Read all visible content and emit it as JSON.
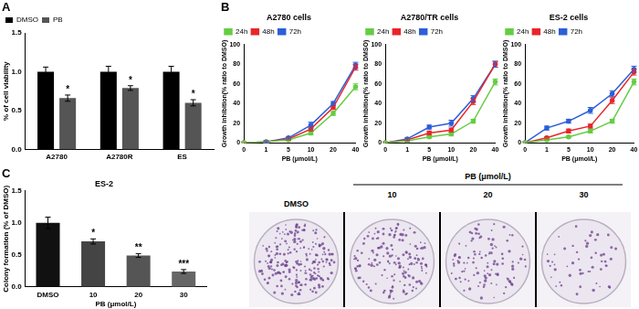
{
  "chart_data": [
    {
      "panel": "A",
      "type": "bar",
      "y_label": "% of cell viability",
      "categories": [
        "A2780",
        "A2780R",
        "ES"
      ],
      "series": [
        {
          "name": "DMSO",
          "color": "#000000",
          "values": [
            1.0,
            1.0,
            1.0
          ],
          "errors": [
            0.06,
            0.07,
            0.07
          ]
        },
        {
          "name": "PB",
          "color": "#555555",
          "values": [
            0.66,
            0.79,
            0.6
          ],
          "errors": [
            0.04,
            0.03,
            0.04
          ],
          "annotations": [
            "*",
            "*",
            "*"
          ]
        }
      ],
      "ylim": [
        0,
        1.5
      ],
      "yticks": [
        {
          "value": 0,
          "label": "0.0"
        },
        {
          "value": 0.5,
          "label": "0.5"
        },
        {
          "value": 1,
          "label": "1.0"
        },
        {
          "value": 1.5,
          "label": "1.5"
        }
      ],
      "legend": "top-left",
      "grid": false
    },
    {
      "panel": "B",
      "type": "line",
      "title": "A2780 cells",
      "x_label": "PB (μmol/L)",
      "y_label": "Growth inhibition(% ratio to DMSO)",
      "categories": [
        "0",
        "1",
        "5",
        "10",
        "20",
        "40"
      ],
      "series": [
        {
          "name": "24h",
          "color": "#66cc44",
          "values": [
            0,
            1,
            3,
            10,
            30,
            57
          ],
          "errors": [
            0,
            1,
            1,
            2,
            2,
            3
          ]
        },
        {
          "name": "48h",
          "color": "#e8262a",
          "values": [
            0,
            1,
            4,
            14,
            36,
            77
          ],
          "errors": [
            0,
            1,
            1,
            2,
            2,
            3
          ]
        },
        {
          "name": "72h",
          "color": "#2c5fd8",
          "values": [
            0,
            1,
            5,
            18,
            40,
            79
          ],
          "errors": [
            0,
            1,
            1,
            3,
            2,
            3
          ]
        }
      ],
      "ylim": [
        0,
        100
      ],
      "yticks": [
        0,
        20,
        40,
        60,
        80,
        100
      ],
      "legend": "top-left",
      "grid": false
    },
    {
      "panel": "",
      "type": "line",
      "title": "A2780/TR cells",
      "x_label": "PB (μmol/L)",
      "y_label": "Growth inhibition(% ratio to DMSO)",
      "categories": [
        "0",
        "1",
        "5",
        "10",
        "20",
        "40"
      ],
      "series": [
        {
          "name": "24h",
          "color": "#66cc44",
          "values": [
            0,
            2,
            6,
            9,
            22,
            62
          ],
          "errors": [
            0,
            1,
            1,
            2,
            2,
            3
          ]
        },
        {
          "name": "48h",
          "color": "#e8262a",
          "values": [
            0,
            3,
            10,
            13,
            42,
            80
          ],
          "errors": [
            0,
            1,
            2,
            2,
            3,
            3
          ]
        },
        {
          "name": "72h",
          "color": "#2c5fd8",
          "values": [
            0,
            4,
            16,
            20,
            45,
            80
          ],
          "errors": [
            0,
            1,
            2,
            3,
            3,
            3
          ]
        }
      ],
      "ylim": [
        0,
        100
      ],
      "yticks": [
        0,
        20,
        40,
        60,
        80,
        100
      ],
      "legend": "top-left",
      "grid": false
    },
    {
      "panel": "",
      "type": "line",
      "title": "ES-2 cells",
      "x_label": "PB (μmol/L)",
      "y_label": "Growth inhibition(% ratio to DMSO)",
      "categories": [
        "0",
        "1",
        "5",
        "10",
        "20",
        "40"
      ],
      "series": [
        {
          "name": "24h",
          "color": "#66cc44",
          "values": [
            0,
            3,
            6,
            12,
            22,
            62
          ],
          "errors": [
            0,
            1,
            1,
            2,
            2,
            3
          ]
        },
        {
          "name": "48h",
          "color": "#e8262a",
          "values": [
            0,
            5,
            12,
            17,
            43,
            72
          ],
          "errors": [
            0,
            1,
            2,
            2,
            3,
            3
          ]
        },
        {
          "name": "72h",
          "color": "#2c5fd8",
          "values": [
            0,
            15,
            22,
            33,
            50,
            75
          ],
          "errors": [
            0,
            2,
            2,
            3,
            3,
            3
          ]
        }
      ],
      "ylim": [
        0,
        100
      ],
      "yticks": [
        0,
        20,
        40,
        60,
        80,
        100
      ],
      "legend": "top-left",
      "grid": false
    },
    {
      "panel": "C",
      "type": "bar",
      "title": "ES-2",
      "x_label": "PB (μmol/L)",
      "y_label": "Colony formation (% of DMSO)",
      "categories": [
        "DMSO",
        "10",
        "20",
        "30"
      ],
      "series": [
        {
          "colors": [
            "#111111",
            "#444444",
            "#555555",
            "#666666"
          ],
          "values": [
            1.0,
            0.71,
            0.49,
            0.24
          ],
          "errors": [
            0.09,
            0.04,
            0.03,
            0.03
          ],
          "annotations": [
            null,
            "*",
            "**",
            "***"
          ]
        }
      ],
      "ylim": [
        0,
        1.5
      ],
      "yticks": [
        {
          "value": 0,
          "label": "0.0"
        },
        {
          "value": 0.5,
          "label": "0.5"
        },
        {
          "value": 1,
          "label": "1.0"
        },
        {
          "value": 1.5,
          "label": "1.5"
        }
      ],
      "grid": false
    }
  ],
  "plates": {
    "x_label": "PB (μmol/L)",
    "labels": [
      "DMSO",
      "10",
      "20",
      "30"
    ]
  }
}
